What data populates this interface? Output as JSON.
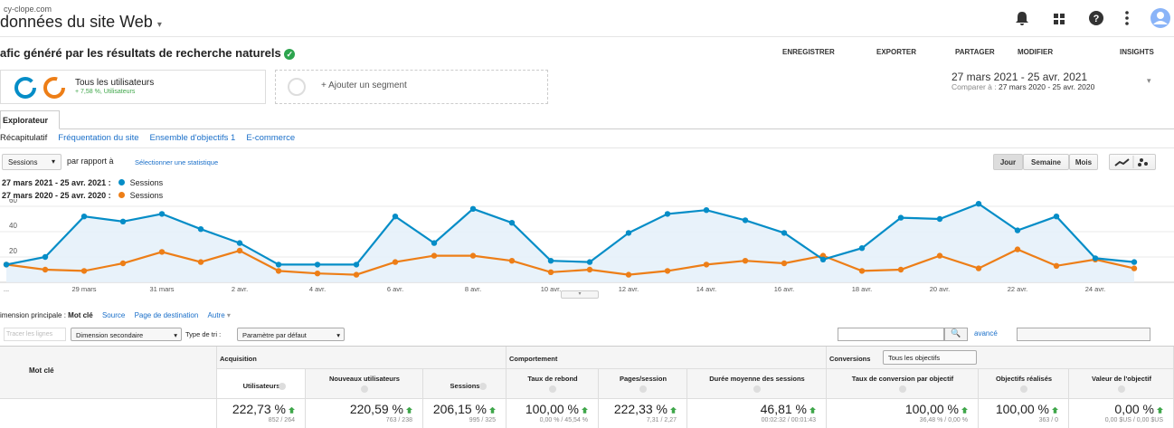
{
  "header": {
    "domain": "cy-clope.com",
    "title": "données du site Web"
  },
  "report": {
    "title": "afic généré par les résultats de recherche naturels",
    "actions": [
      "ENREGISTRER",
      "EXPORTER",
      "PARTAGER",
      "MODIFIER",
      "INSIGHTS"
    ]
  },
  "segments": [
    {
      "name": "Tous les utilisateurs",
      "detail": "+ 7,58 %, Utilisateurs"
    }
  ],
  "add_segment": "+ Ajouter un segment",
  "date_range": {
    "main": "27 mars 2021 - 25 avr. 2021",
    "compare_label": "Comparer à :",
    "compare": "27 mars 2020 - 25 avr. 2020"
  },
  "tab": "Explorateur",
  "subtabs": [
    "Récapitulatif",
    "Fréquentation du site",
    "Ensemble d'objectifs 1",
    "E-commerce"
  ],
  "controls": {
    "metric": "Sessions",
    "versus": "par rapport à",
    "select_metric": "Sélectionner une statistique",
    "granularity": [
      "Jour",
      "Semaine",
      "Mois"
    ]
  },
  "chart_data": {
    "type": "line",
    "categories": [
      "...",
      null,
      "29 mars",
      null,
      "31 mars",
      null,
      "2 avr.",
      null,
      "4 avr.",
      null,
      "6 avr.",
      null,
      "8 avr.",
      null,
      "10 avr.",
      null,
      "12 avr.",
      null,
      "14 avr.",
      null,
      "16 avr.",
      null,
      "18 avr.",
      null,
      "20 avr.",
      null,
      "22 avr.",
      null,
      "24 avr.",
      null
    ],
    "series": [
      {
        "name": "Sessions",
        "period": "27 mars 2021 - 25 avr. 2021 :",
        "color": "#058dc7",
        "values": [
          14,
          20,
          52,
          48,
          54,
          42,
          31,
          14,
          14,
          14,
          52,
          31,
          58,
          47,
          17,
          16,
          39,
          54,
          57,
          49,
          39,
          18,
          27,
          51,
          50,
          62,
          41,
          52,
          19,
          16
        ]
      },
      {
        "name": "Sessions",
        "period": "27 mars 2020 - 25 avr. 2020 :",
        "color": "#ed7e17",
        "values": [
          14,
          10,
          9,
          15,
          24,
          16,
          25,
          9,
          7,
          6,
          16,
          21,
          21,
          17,
          8,
          10,
          6,
          9,
          14,
          17,
          15,
          21,
          9,
          10,
          21,
          11,
          26,
          13,
          18,
          11
        ]
      }
    ],
    "ylim": [
      0,
      65
    ],
    "yticks": [
      20,
      40,
      60
    ],
    "grid": true,
    "area": true
  },
  "dimension": {
    "label": "imension principale :",
    "current": "Mot clé",
    "options": [
      "Source",
      "Page de destination",
      "Autre"
    ]
  },
  "toolbar": {
    "plot_rows": "Tracer les lignes",
    "secondary": "Dimension secondaire",
    "sort_label": "Type de tri :",
    "sort": "Paramètre par défaut",
    "advanced": "avancé"
  },
  "table": {
    "dimension_header": "Mot clé",
    "groups": [
      "Acquisition",
      "Comportement",
      "Conversions"
    ],
    "conversion_select": "Tous les objectifs",
    "columns": [
      "Utilisateurs",
      "Nouveaux utilisateurs",
      "Sessions",
      "Taux de rebond",
      "Pages/session",
      "Durée moyenne des sessions",
      "Taux de conversion par objectif",
      "Objectifs réalisés",
      "Valeur de l'objectif"
    ],
    "totals": [
      {
        "value": "222,73 %",
        "detail": "852 / 264"
      },
      {
        "value": "220,59 %",
        "detail": "763 / 238"
      },
      {
        "value": "206,15 %",
        "detail": "995 / 325"
      },
      {
        "value": "100,00 %",
        "detail": "0,00 % / 45,54 %"
      },
      {
        "value": "222,33 %",
        "detail": "7,31 / 2,27"
      },
      {
        "value": "46,81 %",
        "detail": "00:02:32 / 00:01:43"
      },
      {
        "value": "100,00 %",
        "detail": "36,48 % / 0,00 %"
      },
      {
        "value": "100,00 %",
        "detail": "363 / 0"
      },
      {
        "value": "0,00 %",
        "detail": "0,00 $US / 0,00 $US"
      }
    ]
  }
}
